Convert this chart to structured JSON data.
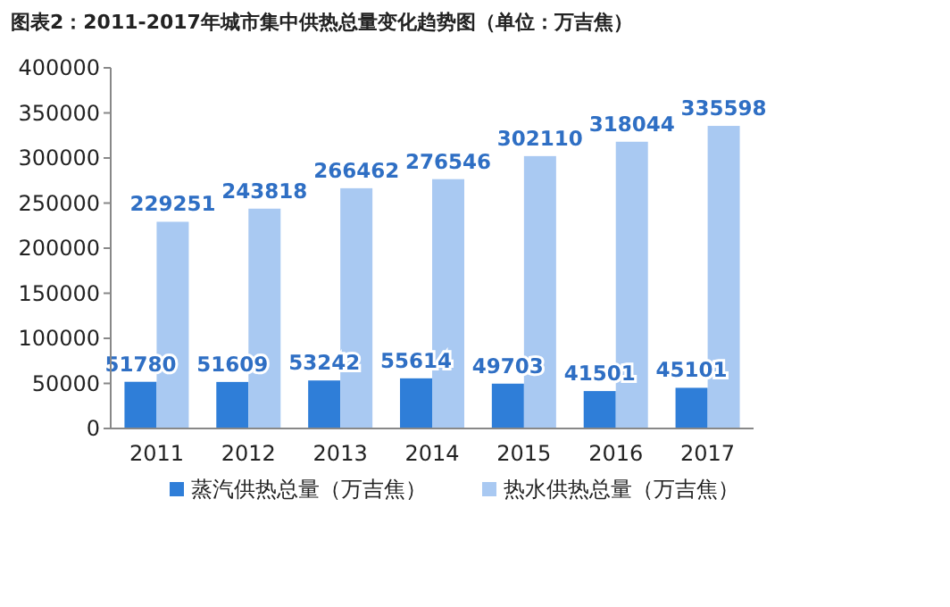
{
  "chart_data": {
    "type": "bar",
    "title": "图表2：2011-2017年城市集中供热总量变化趋势图（单位：万吉焦）",
    "categories": [
      "2011",
      "2012",
      "2013",
      "2014",
      "2015",
      "2016",
      "2017"
    ],
    "series": [
      {
        "name": "蒸汽供热总量（万吉焦）",
        "color": "#2f7ed8",
        "values": [
          51780,
          51609,
          53242,
          55614,
          49703,
          41501,
          45101
        ]
      },
      {
        "name": "热水供热总量（万吉焦）",
        "color": "#a9c9f2",
        "values": [
          229251,
          243818,
          266462,
          276546,
          302110,
          318044,
          335598
        ]
      }
    ],
    "ylim": [
      0,
      400000
    ],
    "yticks": [
      0,
      50000,
      100000,
      150000,
      200000,
      250000,
      300000,
      350000,
      400000
    ],
    "data_labels": true,
    "legend": "bottom",
    "grid": false
  }
}
